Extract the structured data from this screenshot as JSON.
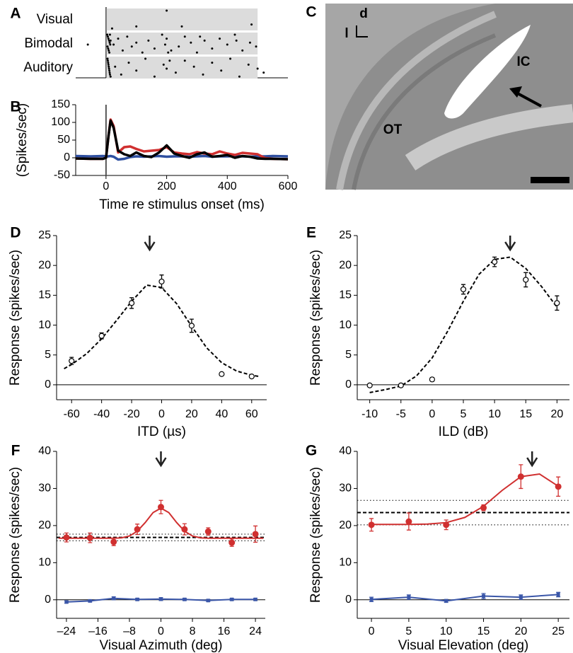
{
  "chart_data": [
    {
      "panel": "A",
      "type": "raster",
      "categories": [
        "Visual",
        "Bimodal",
        "Auditory"
      ],
      "xlim": [
        -100,
        600
      ],
      "stimulus_window": [
        0,
        500
      ],
      "series": [
        {
          "name": "Visual",
          "color": "#000000",
          "x": [
            200,
            100,
            20,
            250,
            480
          ],
          "values": [
            0,
            8,
            9,
            8,
            7
          ]
        },
        {
          "name": "Bimodal",
          "color": "#000000",
          "x": [
            4,
            6,
            8,
            10,
            12,
            14,
            5,
            7,
            9,
            11,
            13,
            15,
            25,
            40,
            55,
            70,
            85,
            100,
            120,
            140,
            160,
            185,
            195,
            200,
            215,
            240,
            260,
            280,
            300,
            325,
            350,
            375,
            400,
            425,
            450,
            475,
            495,
            205,
            310,
            430,
            -60
          ],
          "values": [
            0,
            1,
            2,
            3,
            4,
            5,
            6,
            7,
            8,
            9,
            0,
            3,
            5,
            2,
            8,
            1,
            6,
            4,
            9,
            3,
            7,
            0,
            5,
            2,
            8,
            6,
            1,
            4,
            9,
            3,
            7,
            2,
            5,
            0,
            8,
            4,
            6,
            9,
            1,
            3,
            5
          ]
        },
        {
          "name": "Auditory",
          "color": "#000000",
          "x": [
            5,
            7,
            9,
            11,
            13,
            15,
            6,
            8,
            10,
            12,
            30,
            50,
            75,
            100,
            130,
            160,
            190,
            200,
            230,
            260,
            290,
            320,
            350,
            380,
            410,
            440,
            470,
            500,
            210,
            520
          ],
          "values": [
            0,
            2,
            4,
            6,
            8,
            9,
            1,
            3,
            5,
            7,
            4,
            8,
            2,
            6,
            0,
            9,
            3,
            5,
            7,
            1,
            4,
            8,
            2,
            6,
            0,
            9,
            3,
            5,
            1,
            7
          ]
        }
      ]
    },
    {
      "panel": "B",
      "type": "line",
      "y_label": "(Spikes/sec)",
      "x_label": "Time re stimulus onset (ms)",
      "xlim": [
        -100,
        600
      ],
      "xticks": [
        0,
        200,
        400,
        600
      ],
      "ylim": [
        -50,
        150
      ],
      "yticks": [
        -50,
        0,
        50,
        100,
        150
      ],
      "x": [
        -100,
        -50,
        -10,
        0,
        8,
        15,
        25,
        40,
        60,
        80,
        100,
        125,
        150,
        175,
        200,
        225,
        250,
        275,
        300,
        325,
        350,
        375,
        400,
        425,
        450,
        475,
        500,
        525,
        550,
        600
      ],
      "series": [
        {
          "color": "#2e4fa0",
          "values": [
            5,
            4,
            5,
            4,
            4,
            5,
            3,
            -5,
            -3,
            2,
            4,
            3,
            4,
            5,
            3,
            4,
            4,
            3,
            4,
            5,
            3,
            4,
            4,
            5,
            4,
            3,
            4,
            4,
            5,
            4
          ]
        },
        {
          "color": "#d03030",
          "values": [
            -2,
            -3,
            -3,
            0,
            60,
            108,
            90,
            15,
            30,
            32,
            25,
            18,
            20,
            22,
            30,
            15,
            12,
            10,
            16,
            12,
            10,
            18,
            12,
            8,
            14,
            12,
            10,
            -1,
            -3,
            -4
          ]
        },
        {
          "color": "#000000",
          "values": [
            -2,
            -3,
            -3,
            0,
            60,
            105,
            85,
            20,
            10,
            5,
            15,
            5,
            2,
            15,
            35,
            12,
            5,
            0,
            10,
            15,
            3,
            5,
            8,
            0,
            5,
            3,
            -2,
            -3,
            -3,
            -4
          ]
        }
      ]
    },
    {
      "panel": "C",
      "type": "image",
      "labels": [
        "d",
        "l",
        "IC",
        "OT"
      ]
    },
    {
      "panel": "D",
      "type": "errorbar",
      "y_label": "Response (spikes/sec)",
      "x_label": "ITD (µs)",
      "xlim": [
        -70,
        70
      ],
      "xticks": [
        -60,
        -40,
        -20,
        0,
        20,
        40,
        60
      ],
      "ylim": [
        -2.5,
        25
      ],
      "yticks": [
        0,
        5,
        10,
        15,
        20,
        25
      ],
      "arrow_x": -8,
      "x": [
        -60,
        -40,
        -20,
        0,
        20,
        40,
        60
      ],
      "series": [
        {
          "color": "#000000",
          "marker": "open",
          "values": [
            4.0,
            8.2,
            13.7,
            17.3,
            9.9,
            1.8,
            1.4
          ],
          "errors": [
            0.6,
            0.5,
            0.9,
            1.1,
            1.1,
            0.2,
            0.2
          ]
        }
      ],
      "fit": {
        "style": "dashed",
        "color": "#000000",
        "x": [
          -65,
          -60,
          -50,
          -40,
          -30,
          -20,
          -10,
          0,
          10,
          20,
          30,
          40,
          50,
          60,
          65
        ],
        "values": [
          2.7,
          3.4,
          5.2,
          7.7,
          10.8,
          14.0,
          16.7,
          16.3,
          13.6,
          9.8,
          6.2,
          3.7,
          2.3,
          1.6,
          1.4
        ]
      }
    },
    {
      "panel": "E",
      "type": "errorbar",
      "y_label": "Response (spikes/sec)",
      "x_label": "ILD (dB)",
      "xlim": [
        -12,
        22
      ],
      "xticks": [
        -10,
        -5,
        0,
        5,
        10,
        15,
        20
      ],
      "ylim": [
        -2.5,
        25
      ],
      "yticks": [
        0,
        5,
        10,
        15,
        20,
        25
      ],
      "arrow_x": 12.5,
      "x": [
        -10,
        -5,
        0,
        5,
        10,
        15,
        20
      ],
      "series": [
        {
          "color": "#000000",
          "marker": "open",
          "values": [
            -0.1,
            -0.1,
            0.9,
            16.0,
            20.6,
            17.6,
            13.7
          ],
          "errors": [
            0.2,
            0.2,
            0.3,
            0.8,
            0.8,
            1.2,
            1.2
          ]
        }
      ],
      "fit": {
        "style": "dashed",
        "color": "#000000",
        "x": [
          -10,
          -7.5,
          -5,
          -2.5,
          0,
          2.5,
          5,
          7.5,
          10,
          12.5,
          15,
          17.5,
          20
        ],
        "values": [
          -1.3,
          -0.8,
          -0.2,
          1.5,
          4.5,
          9,
          14,
          18.5,
          21,
          21.4,
          19.5,
          16.5,
          13
        ]
      }
    },
    {
      "panel": "F",
      "type": "errorbar",
      "y_label": "Response (spikes/sec)",
      "x_label": "Visual Azimuth (deg)",
      "xlim": [
        -26.5,
        26.5
      ],
      "xticks": [
        {
          "value": -24,
          "label": "–24"
        },
        {
          "value": -16,
          "label": "–16"
        },
        {
          "value": -8,
          "label": "–8"
        },
        0,
        8,
        16,
        24
      ],
      "ylim": [
        -5,
        40
      ],
      "yticks": [
        0,
        10,
        20,
        30,
        40
      ],
      "arrow_x": 0,
      "x": [
        -24,
        -18,
        -12,
        -6,
        0,
        6,
        12,
        18,
        24
      ],
      "series": [
        {
          "color": "#d03030",
          "marker": "filled",
          "values": [
            16.8,
            16.7,
            15.6,
            19.0,
            25.0,
            19.0,
            18.4,
            15.4,
            17.7
          ],
          "errors": [
            1.2,
            1.3,
            1.0,
            1.4,
            1.8,
            1.5,
            1.0,
            1.0,
            2.2
          ]
        },
        {
          "color": "#3a56a8",
          "marker": "square",
          "connect": true,
          "values": [
            -0.6,
            -0.3,
            0.4,
            0.1,
            0.2,
            0.1,
            -0.2,
            0.1,
            0.1
          ],
          "errors": [
            0.3,
            0.3,
            0.4,
            0.3,
            0.4,
            0.3,
            0.3,
            0.3,
            0.3
          ]
        }
      ],
      "fit": {
        "style": "solid",
        "color": "#d03030",
        "x": [
          -26,
          -24,
          -22,
          -20,
          -18,
          -16,
          -14,
          -12,
          -10,
          -8,
          -6,
          -4,
          -2,
          0,
          2,
          4,
          6,
          8,
          10,
          12,
          14,
          16,
          18,
          20,
          22,
          24,
          26
        ],
        "values": [
          16.6,
          16.6,
          16.6,
          16.6,
          16.6,
          16.6,
          16.6,
          16.6,
          16.7,
          17.2,
          18.5,
          20.8,
          23.5,
          24.7,
          23.5,
          20.8,
          18.5,
          17.2,
          16.7,
          16.6,
          16.6,
          16.6,
          16.6,
          16.6,
          16.6,
          16.6,
          16.6
        ]
      },
      "ref_lines": [
        {
          "value": 16.8,
          "style": "dashed"
        },
        {
          "value": 15.9,
          "style": "dotted"
        },
        {
          "value": 17.7,
          "style": "dotted"
        }
      ]
    },
    {
      "panel": "G",
      "type": "errorbar",
      "y_label": "Response (spikes/sec)",
      "x_label": "Visual Elevation (deg)",
      "xlim": [
        -1.9,
        26.5
      ],
      "xticks": [
        0,
        5,
        10,
        15,
        20,
        25
      ],
      "ylim": [
        -5,
        40
      ],
      "yticks": [
        0,
        10,
        20,
        30,
        40
      ],
      "arrow_x": 21.5,
      "x": [
        0,
        5,
        10,
        15,
        20,
        25
      ],
      "series": [
        {
          "color": "#d03030",
          "marker": "filled",
          "values": [
            20.2,
            21.1,
            20.2,
            24.8,
            33.2,
            30.5
          ],
          "errors": [
            1.7,
            2.3,
            1.3,
            0.8,
            3.2,
            2.6
          ]
        },
        {
          "color": "#3a56a8",
          "marker": "square",
          "connect": true,
          "values": [
            0.1,
            0.7,
            -0.3,
            1.0,
            0.7,
            1.4
          ],
          "errors": [
            0.6,
            0.6,
            0.4,
            0.7,
            0.6,
            0.6
          ]
        }
      ],
      "fit": {
        "style": "solid",
        "color": "#d03030",
        "x": [
          0,
          2.5,
          5,
          7.5,
          10,
          12.5,
          15,
          17.5,
          20,
          22.5,
          25
        ],
        "values": [
          20.3,
          20.3,
          20.3,
          20.4,
          20.8,
          22.2,
          25.2,
          29.5,
          33.2,
          33.9,
          30.6
        ]
      },
      "ref_lines": [
        {
          "value": 23.5,
          "style": "dashed"
        },
        {
          "value": 20.2,
          "style": "dotted"
        },
        {
          "value": 26.8,
          "style": "dotted"
        }
      ]
    }
  ]
}
